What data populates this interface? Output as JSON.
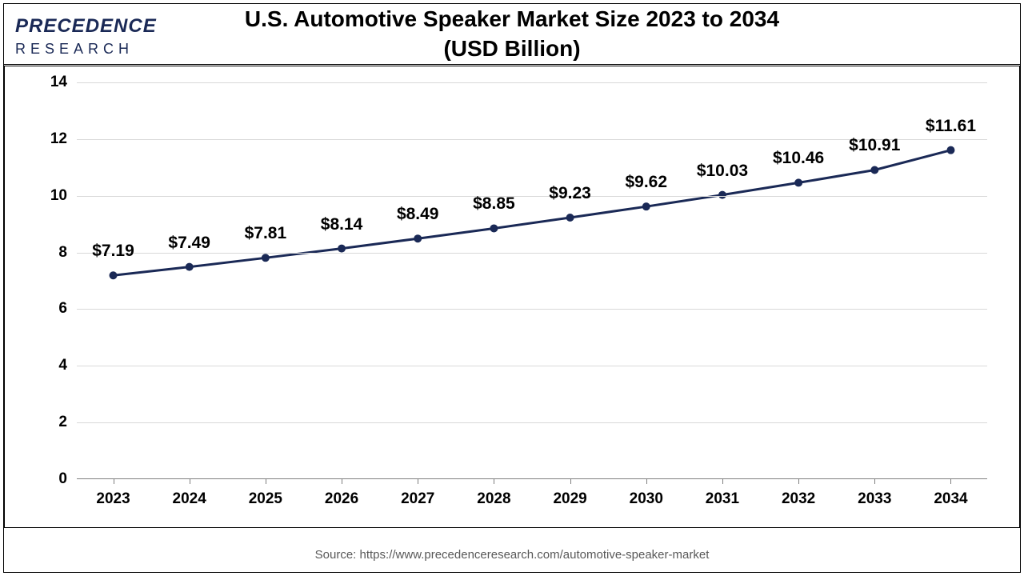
{
  "logo": {
    "main": "PRECEDENCE",
    "sub": "RESEARCH"
  },
  "title_line1": "U.S. Automotive Speaker Market Size 2023 to 2034",
  "title_line2": "(USD Billion)",
  "chart": {
    "type": "line",
    "categories": [
      "2023",
      "2024",
      "2025",
      "2026",
      "2027",
      "2028",
      "2029",
      "2030",
      "2031",
      "2032",
      "2033",
      "2034"
    ],
    "values": [
      7.19,
      7.49,
      7.81,
      8.14,
      8.49,
      8.85,
      9.23,
      9.62,
      10.03,
      10.46,
      10.91,
      11.61
    ],
    "labels": [
      "$7.19",
      "$7.49",
      "$7.81",
      "$8.14",
      "$8.49",
      "$8.85",
      "$9.23",
      "$9.62",
      "$10.03",
      "$10.46",
      "$10.91",
      "$11.61"
    ],
    "ylim": [
      0,
      14
    ],
    "ytick_step": 2,
    "yticks": [
      "0",
      "2",
      "4",
      "6",
      "8",
      "10",
      "12",
      "14"
    ],
    "line_color": "#1a2956",
    "line_width": 3,
    "marker_color": "#1a2956",
    "marker_size": 5,
    "grid_color": "#d9d9d9",
    "background_color": "#ffffff",
    "label_fontsize": 21,
    "axis_fontsize": 19,
    "label_offset_y": -18
  },
  "source": "Source: https://www.precedenceresearch.com/automotive-speaker-market"
}
